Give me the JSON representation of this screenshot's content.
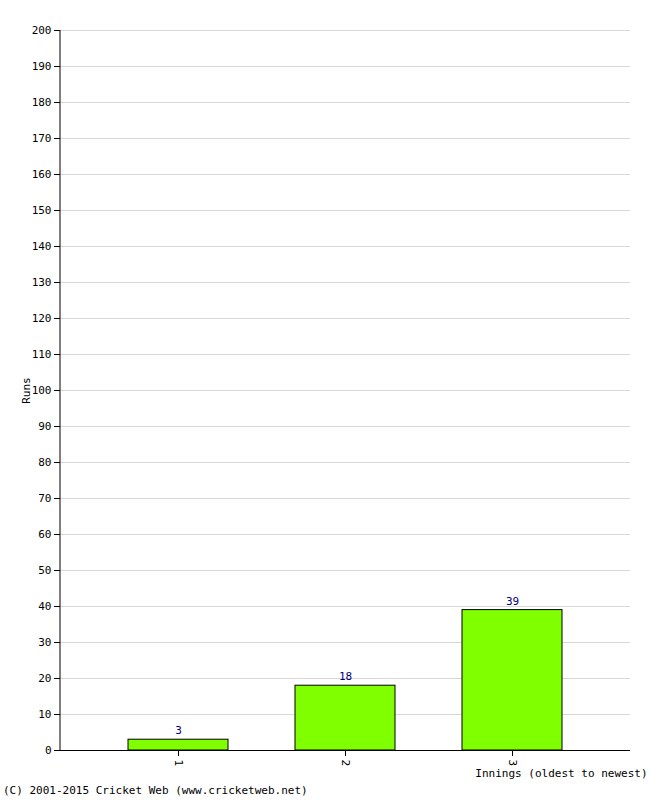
{
  "chart_data": {
    "type": "bar",
    "categories": [
      "1",
      "2",
      "3"
    ],
    "values": [
      3,
      18,
      39
    ],
    "color": "#80ff00",
    "x_label": "Innings (oldest to newest)",
    "y_label": "Runs",
    "ylim": [
      0,
      200
    ],
    "yticks": [
      0,
      10,
      20,
      30,
      40,
      50,
      60,
      70,
      80,
      90,
      100,
      110,
      120,
      130,
      140,
      150,
      160,
      170,
      180,
      190,
      200
    ],
    "grid": true,
    "data_labels": true,
    "caption": "(C) 2001-2015 Cricket Web (www.cricketweb.net)"
  }
}
